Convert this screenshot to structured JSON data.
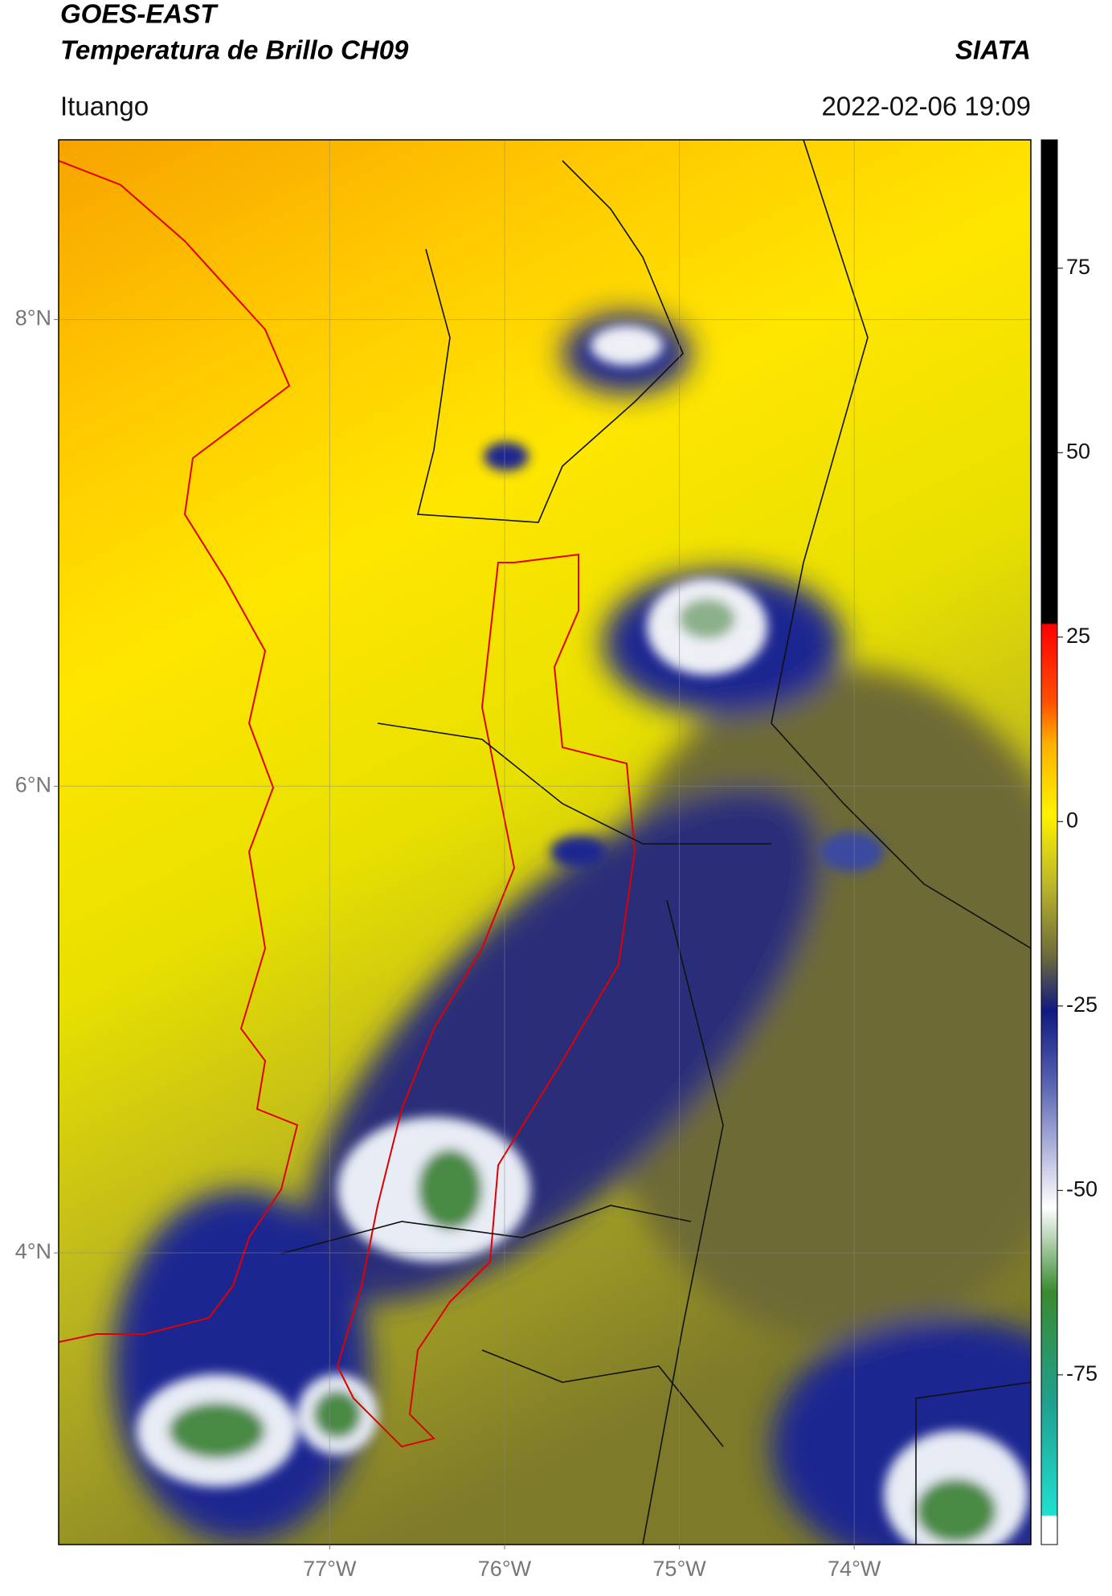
{
  "header": {
    "title": "GOES-EAST",
    "subtitle": "Temperatura de Brillo CH09",
    "source": "SIATA",
    "location": "Ituango",
    "datetime": "2022-02-06 19:09"
  },
  "map": {
    "lat_lim": [
      2.75,
      8.77
    ],
    "lon_lim": [
      -78.55,
      -72.99
    ],
    "lat_ticks": [
      {
        "value": 4,
        "label": "4°N"
      },
      {
        "value": 6,
        "label": "6°N"
      },
      {
        "value": 8,
        "label": "8°N"
      }
    ],
    "lon_ticks": [
      {
        "value": -77,
        "label": "77°W"
      },
      {
        "value": -76,
        "label": "76°W"
      },
      {
        "value": -75,
        "label": "75°W"
      },
      {
        "value": -74,
        "label": "74°W"
      }
    ],
    "grid": true
  },
  "colorbar": {
    "lim": [
      -98,
      92.4
    ],
    "ticks": [
      -75,
      -50,
      -25,
      0,
      25,
      50,
      75
    ]
  }
}
